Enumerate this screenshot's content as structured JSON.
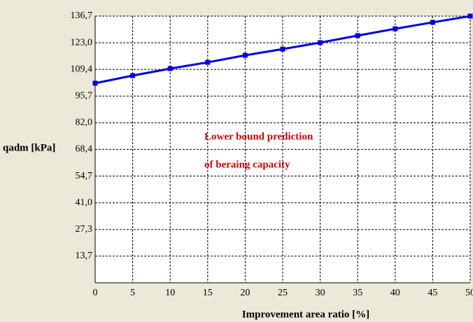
{
  "chart_data": {
    "type": "line",
    "xlabel": "Improvement area ratio [%]",
    "ylabel": "qadm [kPa]",
    "annotations": [
      "Lower bound prediction",
      "of beraing capacity"
    ],
    "x": [
      0,
      5,
      10,
      15,
      20,
      25,
      30,
      35,
      40,
      45,
      50
    ],
    "series": [
      {
        "color": "#0000e0",
        "values": [
          102.3,
          106.2,
          109.8,
          113.0,
          116.6,
          119.8,
          123.1,
          126.7,
          130.2,
          133.5,
          136.7
        ]
      }
    ],
    "xlim": [
      0,
      50
    ],
    "xticks": [
      0,
      5,
      10,
      15,
      20,
      25,
      30,
      35,
      40,
      45,
      50
    ],
    "ylim": [
      0,
      136.7
    ],
    "yticks": [
      {
        "value": 13.7,
        "label": "13,7"
      },
      {
        "value": 27.3,
        "label": "27,3"
      },
      {
        "value": 41.0,
        "label": "41,0"
      },
      {
        "value": 54.7,
        "label": "54,7"
      },
      {
        "value": 68.4,
        "label": "68,4"
      },
      {
        "value": 82.0,
        "label": "82,0"
      },
      {
        "value": 95.7,
        "label": "95,7"
      },
      {
        "value": 109.4,
        "label": "109,4"
      },
      {
        "value": 123.0,
        "label": "123,0"
      },
      {
        "value": 136.7,
        "label": "136,7"
      }
    ],
    "grid": true
  }
}
